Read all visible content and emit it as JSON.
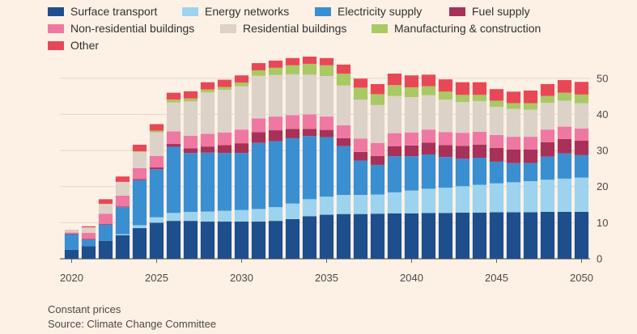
{
  "chart_data": {
    "type": "bar",
    "stacked": true,
    "x": [
      2020,
      2021,
      2022,
      2023,
      2024,
      2025,
      2026,
      2027,
      2028,
      2029,
      2030,
      2031,
      2032,
      2033,
      2034,
      2035,
      2036,
      2037,
      2038,
      2039,
      2040,
      2041,
      2042,
      2043,
      2044,
      2045,
      2046,
      2047,
      2048,
      2049,
      2050
    ],
    "xticks": [
      "2020",
      "2025",
      "2030",
      "2035",
      "2040",
      "2045",
      "2050"
    ],
    "yticks": [
      "0",
      "10",
      "20",
      "30",
      "40",
      "50"
    ],
    "ylim": [
      0,
      56
    ],
    "y_axis_position": "right",
    "grid": true,
    "legend_position": "top",
    "series": [
      {
        "name": "Surface transport",
        "color": "#1f4e8c",
        "values": [
          2.5,
          3.5,
          5,
          6.5,
          8.5,
          10,
          10.5,
          10.5,
          10.3,
          10.3,
          10.3,
          10.3,
          10.5,
          11,
          11.8,
          12.2,
          12.4,
          12.4,
          12.5,
          12.6,
          12.6,
          12.7,
          12.7,
          12.8,
          12.8,
          12.9,
          12.9,
          12.9,
          13,
          13,
          13
        ]
      },
      {
        "name": "Energy networks",
        "color": "#9dd3ee",
        "values": [
          0,
          0,
          0,
          0.3,
          0.8,
          1.5,
          2.2,
          2.5,
          2.8,
          3,
          3.2,
          3.5,
          3.8,
          4.3,
          4.7,
          5,
          5.3,
          5.3,
          5.3,
          5.8,
          6.3,
          6.7,
          7,
          7.3,
          7.7,
          8,
          8.3,
          8.6,
          8.9,
          9.2,
          9.5
        ]
      },
      {
        "name": "Electricity supply",
        "color": "#3a8fd1",
        "values": [
          4.3,
          1.8,
          4.5,
          7.5,
          12.5,
          13.3,
          18.3,
          16.3,
          16.3,
          16,
          15.8,
          18.3,
          18.3,
          18.1,
          17.5,
          16.5,
          13.5,
          9.5,
          8.2,
          10,
          9.5,
          9.5,
          8.5,
          7.6,
          7.5,
          6,
          5.3,
          5,
          6.4,
          7,
          6.2
        ]
      },
      {
        "name": "Fuel supply",
        "color": "#a8315a",
        "values": [
          0.2,
          0.2,
          0.2,
          0.2,
          0.3,
          0.5,
          0.8,
          1.3,
          1.7,
          2.2,
          2.7,
          3,
          3,
          2.6,
          2,
          2,
          2.2,
          2.4,
          2.5,
          2.8,
          3,
          3.3,
          3.3,
          3.6,
          3.6,
          3.8,
          3.8,
          3.8,
          4,
          4,
          4
        ]
      },
      {
        "name": "Non-residential buildings",
        "color": "#ef78a2",
        "values": [
          0.3,
          1.7,
          2.8,
          3,
          3,
          3.2,
          3.5,
          3.5,
          3.5,
          3.5,
          3.8,
          3.8,
          3.8,
          3.8,
          4,
          3.7,
          3.6,
          3.7,
          3.6,
          3.6,
          3.6,
          3.6,
          3.6,
          3.6,
          3.6,
          3.6,
          3.5,
          3.5,
          3.5,
          3.4,
          3.4
        ]
      },
      {
        "name": "Residential buildings",
        "color": "#dcd2c8",
        "values": [
          0.5,
          1.5,
          2.7,
          3.8,
          4.5,
          6.5,
          8,
          9.5,
          11.5,
          11.8,
          12,
          11.8,
          11.5,
          11.3,
          11,
          11.2,
          11,
          10.8,
          10.5,
          10.3,
          9.8,
          9.5,
          9,
          8.5,
          8.5,
          7.8,
          7.7,
          7.5,
          7.4,
          7.2,
          7
        ]
      },
      {
        "name": "Manufacturing & construction",
        "color": "#a8c964",
        "values": [
          0,
          0,
          0,
          0,
          0.2,
          0.5,
          0.8,
          0.8,
          0.8,
          0.8,
          1,
          1.5,
          2,
          2.5,
          3,
          3,
          3.3,
          3.3,
          3,
          3,
          2.7,
          2.5,
          2.2,
          2,
          1.7,
          1.7,
          1.6,
          1.8,
          1.9,
          2.2,
          2.4
        ]
      },
      {
        "name": "Other",
        "color": "#e84856",
        "values": [
          0.1,
          0.3,
          1.3,
          1.5,
          1.8,
          1.8,
          1.9,
          2,
          2,
          2,
          2,
          2,
          2,
          2,
          2,
          2,
          2.5,
          2.5,
          2.8,
          3.2,
          3.3,
          3.2,
          3.4,
          3.5,
          3.5,
          3.2,
          3.2,
          3.5,
          3.3,
          3.5,
          3.5
        ]
      }
    ]
  },
  "footer": {
    "note": "Constant prices",
    "source": "Source: Climate Change Committee"
  }
}
